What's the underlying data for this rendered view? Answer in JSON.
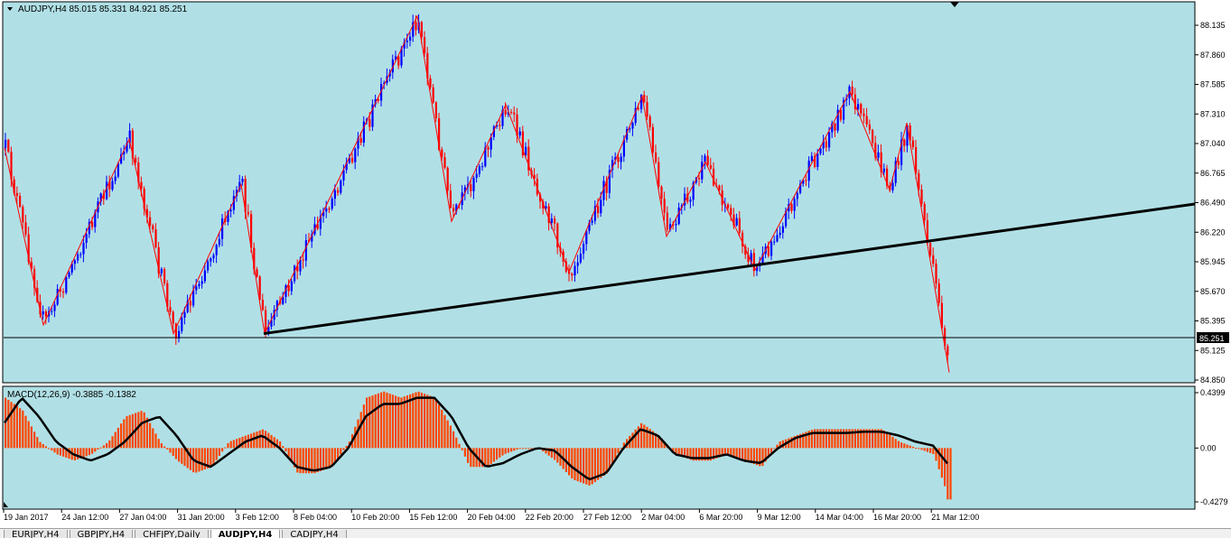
{
  "symbol_header": "AUDJPY,H4  85.015 85.331 84.921 85.251",
  "macd_header": "MACD(12,26,9) -0.3885 -0.1382",
  "price_axis": [
    "88.135",
    "87.860",
    "87.585",
    "87.310",
    "87.040",
    "86.765",
    "86.490",
    "86.220",
    "85.945",
    "85.670",
    "85.395",
    "85.125",
    "84.850"
  ],
  "current_price_label": "85.251",
  "macd_axis": [
    "0.4399",
    "0.00",
    "-0.4279"
  ],
  "time_axis": [
    "19 Jan 2017",
    "24 Jan 12:00",
    "27 Jan 04:00",
    "31 Jan 20:00",
    "3 Feb 12:00",
    "8 Feb 04:00",
    "10 Feb 20:00",
    "15 Feb 12:00",
    "20 Feb 04:00",
    "22 Feb 20:00",
    "27 Feb 12:00",
    "2 Mar 04:00",
    "6 Mar 20:00",
    "9 Mar 12:00",
    "14 Mar 04:00",
    "16 Mar 20:00",
    "21 Mar 12:00"
  ],
  "tabs": [
    {
      "label": "EURJPY,H4",
      "active": false
    },
    {
      "label": "GBPJPY,H4",
      "active": false
    },
    {
      "label": "CHFJPY,Daily",
      "active": false
    },
    {
      "label": "AUDJPY,H4",
      "active": true
    },
    {
      "label": "CADJPY,H4",
      "active": false
    }
  ],
  "colors": {
    "background": "#b0e0e6",
    "bull_candle": "#0000ff",
    "bear_candle": "#ff0000",
    "zigzag": "#ff0000",
    "trendline": "#000000",
    "macd_histogram": "#ff4500",
    "macd_signal": "#000000",
    "price_label_bg": "#000000"
  },
  "chart_data": {
    "type": "candlestick",
    "symbol": "AUDJPY",
    "timeframe": "H4",
    "ohlc_last": {
      "open": 85.015,
      "high": 85.331,
      "low": 84.921,
      "close": 85.251
    },
    "ylim": [
      84.85,
      88.135
    ],
    "current_price": 85.251,
    "zigzag": [
      {
        "x": "19 Jan 2017",
        "y": 87.0
      },
      {
        "x": "20 Jan",
        "y": 85.36
      },
      {
        "x": "26 Jan",
        "y": 87.08
      },
      {
        "x": "30 Jan",
        "y": 85.28
      },
      {
        "x": "2 Feb",
        "y": 86.66
      },
      {
        "x": "3 Feb 12:00",
        "y": 85.28
      },
      {
        "x": "14 Feb",
        "y": 88.22
      },
      {
        "x": "17 Feb",
        "y": 86.32
      },
      {
        "x": "21 Feb",
        "y": 87.4
      },
      {
        "x": "24 Feb",
        "y": 85.85
      },
      {
        "x": "2 Mar 04:00",
        "y": 87.48
      },
      {
        "x": "3 Mar",
        "y": 86.18
      },
      {
        "x": "6 Mar",
        "y": 86.87
      },
      {
        "x": "9 Mar 12:00",
        "y": 85.87
      },
      {
        "x": "13 Mar",
        "y": 87.52
      },
      {
        "x": "16 Mar",
        "y": 86.61
      },
      {
        "x": "17 Mar",
        "y": 87.23
      },
      {
        "x": "21 Mar",
        "y": 84.92
      }
    ],
    "trendline": [
      {
        "x": "3 Feb 12:00",
        "y": 85.28
      },
      {
        "x": "23 Mar",
        "y": 86.48
      }
    ],
    "macd": {
      "params": "12,26,9",
      "main": -0.3885,
      "signal": -0.1382,
      "ylim": [
        -0.4279,
        0.4399
      ],
      "histogram_profile": [
        0.4,
        0.3,
        0.05,
        -0.05,
        -0.1,
        -0.05,
        0.05,
        0.25,
        0.3,
        0.05,
        -0.1,
        -0.2,
        -0.15,
        0.05,
        0.1,
        0.15,
        0.05,
        -0.2,
        -0.2,
        -0.15,
        0.05,
        0.4,
        0.45,
        0.4,
        0.45,
        0.4,
        0.15,
        -0.15,
        -0.15,
        -0.05,
        0.0,
        0.0,
        -0.1,
        -0.25,
        -0.3,
        -0.2,
        0.05,
        0.2,
        0.1,
        -0.05,
        -0.1,
        -0.1,
        -0.05,
        -0.1,
        -0.15,
        0.05,
        0.1,
        0.15,
        0.15,
        0.15,
        0.15,
        0.15,
        0.05,
        0.0,
        -0.05,
        -0.45
      ],
      "signal_profile": [
        0.2,
        0.4,
        0.25,
        0.05,
        -0.05,
        -0.1,
        -0.05,
        0.05,
        0.2,
        0.25,
        0.1,
        -0.1,
        -0.15,
        -0.05,
        0.05,
        0.1,
        0.0,
        -0.15,
        -0.18,
        -0.15,
        0.0,
        0.25,
        0.35,
        0.35,
        0.4,
        0.4,
        0.25,
        0.0,
        -0.15,
        -0.12,
        -0.05,
        0.0,
        -0.02,
        -0.15,
        -0.25,
        -0.2,
        0.0,
        0.15,
        0.1,
        -0.05,
        -0.08,
        -0.08,
        -0.05,
        -0.1,
        -0.12,
        0.0,
        0.08,
        0.12,
        0.12,
        0.12,
        0.13,
        0.13,
        0.1,
        0.05,
        0.02,
        -0.15
      ]
    }
  }
}
